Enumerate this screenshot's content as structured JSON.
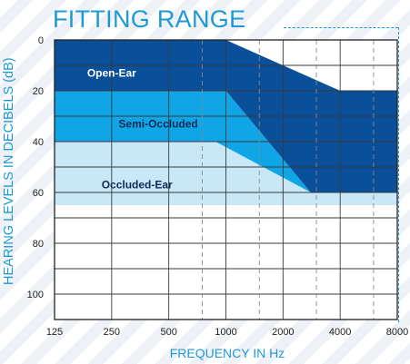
{
  "title": "FITTING RANGE",
  "chart_data": {
    "type": "area",
    "title": "FITTING RANGE",
    "xlabel": "FREQUENCY IN Hz",
    "ylabel": "HEARING LEVELS IN DECIBELS (dB)",
    "x_ticks": [
      "125",
      "250",
      "500",
      "1000",
      "2000",
      "4000",
      "8000"
    ],
    "y_ticks": [
      "0",
      "20",
      "40",
      "60",
      "80",
      "100"
    ],
    "ylim": [
      0,
      110
    ],
    "y_inverted": true,
    "x_scale": "log",
    "grid": true,
    "regions": [
      {
        "name": "Open-Ear",
        "color": "#0a4f9a",
        "label_color": "#ffffff",
        "label_at": [
          250,
          13
        ],
        "points": [
          [
            125,
            0
          ],
          [
            1000,
            0
          ],
          [
            4000,
            20
          ],
          [
            8000,
            20
          ],
          [
            8000,
            60
          ],
          [
            2800,
            60
          ],
          [
            1000,
            20
          ],
          [
            125,
            20
          ]
        ]
      },
      {
        "name": "Semi-Occluded",
        "color": "#10a6e6",
        "label_color": "#0d2a55",
        "label_at": [
          440,
          33
        ],
        "points": [
          [
            125,
            20
          ],
          [
            1000,
            20
          ],
          [
            2800,
            60
          ],
          [
            880,
            40
          ],
          [
            125,
            40
          ]
        ]
      },
      {
        "name": "Occluded-Ear",
        "color": "#c8e8f8",
        "label_color": "#0d2a55",
        "label_at": [
          340,
          57
        ],
        "points": [
          [
            125,
            40
          ],
          [
            880,
            40
          ],
          [
            2800,
            60
          ],
          [
            8000,
            60
          ],
          [
            8000,
            65
          ],
          [
            125,
            65
          ]
        ]
      }
    ]
  }
}
